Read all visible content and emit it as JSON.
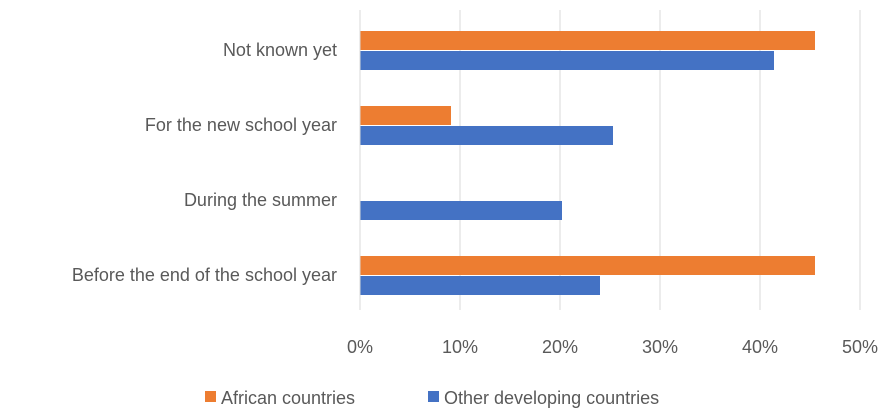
{
  "chart_data": {
    "type": "bar",
    "orientation": "horizontal",
    "categories": [
      "Not known yet",
      "For the new school year",
      "During the summer",
      "Before the end of the school year"
    ],
    "series": [
      {
        "name": "African countries",
        "color": "#ED7D31",
        "values": [
          45.5,
          9.1,
          0,
          45.5
        ]
      },
      {
        "name": "Other developing countries",
        "color": "#4472C4",
        "values": [
          41.4,
          25.3,
          20.2,
          24.0
        ]
      }
    ],
    "xlim": [
      0,
      50
    ],
    "x_ticks": [
      "0%",
      "10%",
      "20%",
      "30%",
      "40%",
      "50%"
    ],
    "grid": "vertical",
    "legend": "bottom",
    "title": "",
    "xlabel": "",
    "ylabel": ""
  }
}
